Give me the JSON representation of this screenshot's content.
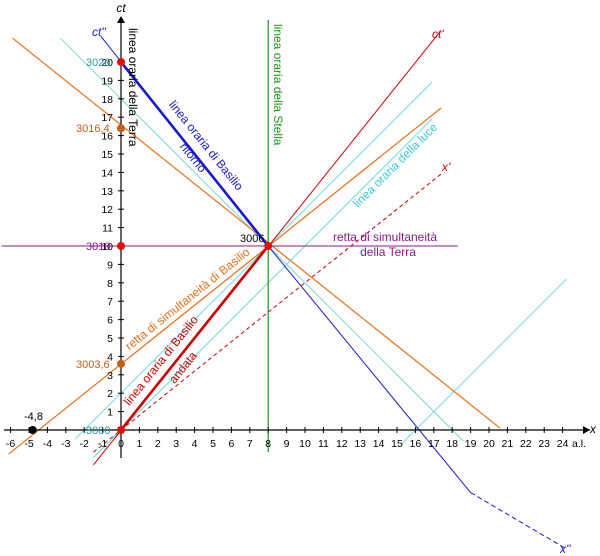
{
  "axes": {
    "x_label": "x",
    "x_unit": "a.l.",
    "y_label": "ct",
    "x_ticks": [
      -6,
      -5,
      -4,
      -3,
      -2,
      -1,
      0,
      1,
      2,
      3,
      4,
      5,
      6,
      7,
      8,
      9,
      10,
      11,
      12,
      13,
      14,
      15,
      16,
      17,
      18,
      19,
      20,
      21,
      22,
      23,
      24
    ],
    "y_ticks": [
      1,
      2,
      3,
      4,
      5,
      6,
      7,
      8,
      9,
      10,
      11,
      12,
      13,
      14,
      15,
      16,
      17,
      18,
      19,
      20
    ]
  },
  "axis_names": {
    "ct_andata": "ct'",
    "ct_ritorno": "ct''",
    "x_andata": "x'",
    "x_ritorno": "x''"
  },
  "events": {
    "e3020": "3020",
    "e3016": "3016,4",
    "e3010": "3010",
    "e3003": "3003,6",
    "e3000": "3000",
    "e_neg": "-4,8",
    "e3006": "3006"
  },
  "line_labels": {
    "terra": "linea oraria della Terra",
    "stella": "linea oraria della Stella",
    "ritorno_1": "linea oraria di Basilio",
    "ritorno_2": "ritorno",
    "luce": "linea oraria della luce",
    "sim_terra_1": "retta di simultaneità",
    "sim_terra_2": "della Terra",
    "sim_basilio": "retta di simultaneità di Basilio",
    "andata_1": "linea oraria di Basilio",
    "andata_2": "andata"
  }
}
